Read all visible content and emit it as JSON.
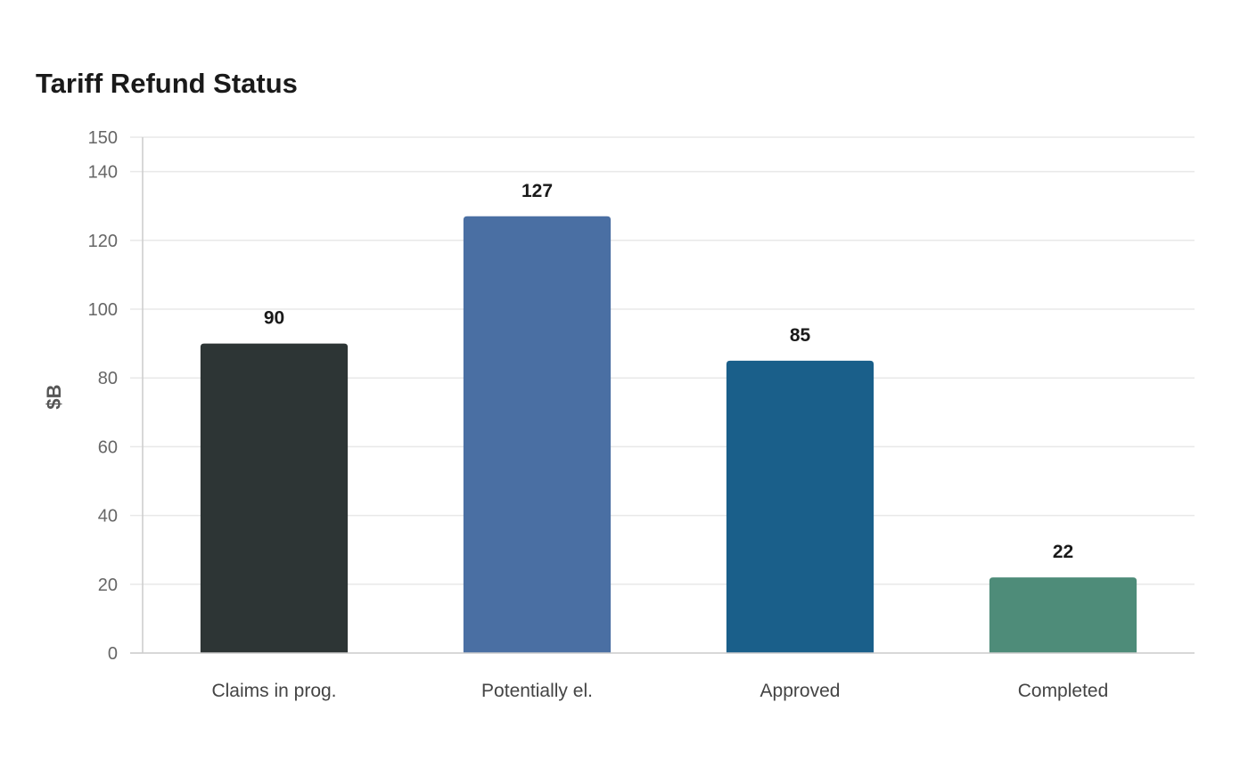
{
  "chart_data": {
    "type": "bar",
    "title": "Tariff Refund Status",
    "ylabel": "$B",
    "xlabel": "",
    "categories": [
      "Claims in prog.",
      "Potentially el.",
      "Approved",
      "Completed"
    ],
    "values": [
      90,
      127,
      85,
      22
    ],
    "colors": [
      "#2d3535",
      "#4a6fa3",
      "#1a5f8a",
      "#4e8c79"
    ],
    "ylim": [
      0,
      150
    ],
    "yticks": [
      0,
      20,
      40,
      60,
      80,
      100,
      120,
      140,
      150
    ],
    "grid": true,
    "legend": "none"
  }
}
